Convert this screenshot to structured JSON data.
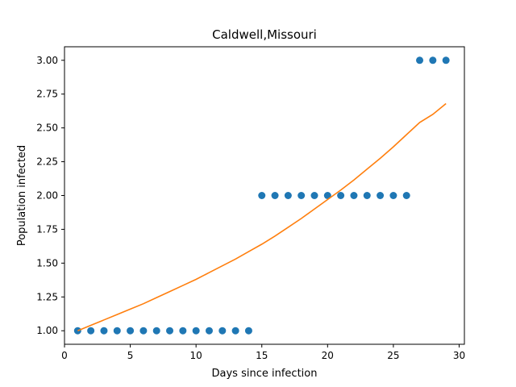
{
  "chart_data": {
    "type": "scatter",
    "title": "Caldwell,Missouri",
    "xlabel": "Days since infection",
    "ylabel": "Population infected",
    "xlim": [
      0.0,
      30.4
    ],
    "ylim": [
      0.9,
      3.1
    ],
    "xticks": [
      0,
      5,
      10,
      15,
      20,
      25,
      30
    ],
    "yticks": [
      1.0,
      1.25,
      1.5,
      1.75,
      2.0,
      2.25,
      2.5,
      2.75,
      3.0
    ],
    "ytick_labels": [
      "1.00",
      "1.25",
      "1.50",
      "1.75",
      "2.00",
      "2.25",
      "2.50",
      "2.75",
      "3.00"
    ],
    "grid": false,
    "series": [
      {
        "kind": "scatter",
        "color": "#1f77b4",
        "x": [
          1,
          2,
          3,
          4,
          5,
          6,
          7,
          8,
          9,
          10,
          11,
          12,
          13,
          14,
          15,
          16,
          17,
          18,
          19,
          20,
          21,
          22,
          23,
          24,
          25,
          26,
          27,
          28,
          29
        ],
        "y": [
          1,
          1,
          1,
          1,
          1,
          1,
          1,
          1,
          1,
          1,
          1,
          1,
          1,
          1,
          2,
          2,
          2,
          2,
          2,
          2,
          2,
          2,
          2,
          2,
          2,
          2,
          3,
          3,
          3
        ]
      },
      {
        "kind": "line",
        "color": "#ff7f0e",
        "x": [
          1,
          2,
          3,
          4,
          5,
          6,
          7,
          8,
          9,
          10,
          11,
          12,
          13,
          14,
          15,
          16,
          17,
          18,
          19,
          20,
          21,
          22,
          23,
          24,
          25,
          26,
          27,
          28,
          29
        ],
        "y": [
          1.0,
          1.04,
          1.08,
          1.12,
          1.16,
          1.2,
          1.245,
          1.29,
          1.335,
          1.38,
          1.43,
          1.48,
          1.53,
          1.585,
          1.64,
          1.7,
          1.765,
          1.83,
          1.9,
          1.97,
          2.04,
          2.115,
          2.195,
          2.275,
          2.36,
          2.45,
          2.54,
          2.6,
          2.68
        ]
      }
    ]
  }
}
